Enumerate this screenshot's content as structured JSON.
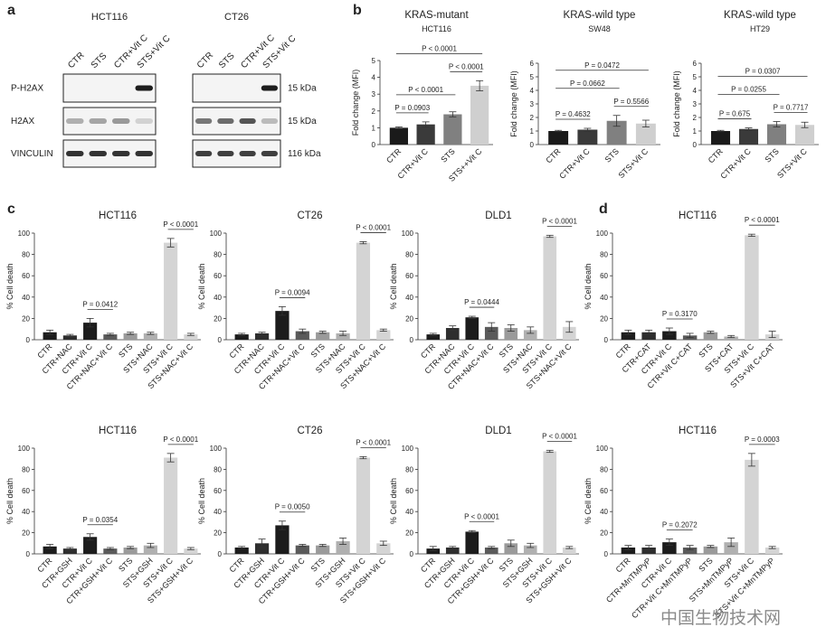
{
  "panel_labels": [
    "a",
    "b",
    "c",
    "d"
  ],
  "watermark": "中国生物技术网",
  "blot": {
    "cell_lines": [
      "HCT116",
      "CT26"
    ],
    "lanes": [
      "CTR",
      "STS",
      "CTR+Vit C",
      "STS+Vit C"
    ],
    "rows": [
      "P-H2AX",
      "H2AX",
      "VINCULIN"
    ],
    "sizes": [
      "15 kDa",
      "15 kDa",
      "116 kDa"
    ]
  },
  "chart_data": [
    {
      "type": "bar",
      "title": "KRAS-mutant",
      "subtitle": "HCT116",
      "ylabel": "Fold change (MFI)",
      "categories": [
        "CTR",
        "CTR+Vit C",
        "STS",
        "STS++Vit C"
      ],
      "values": [
        1,
        1.2,
        1.8,
        3.5
      ],
      "errors": [
        0.05,
        0.15,
        0.15,
        0.3
      ],
      "colors": [
        "#1a1a1a",
        "#3a3a3a",
        "#808080",
        "#cfcfcf"
      ],
      "ylim": [
        0,
        5
      ],
      "yticks": [
        0,
        1,
        2,
        3,
        4,
        5
      ],
      "comparisons": [
        {
          "label": "P = 0.0903",
          "between": [
            "CTR",
            "CTR+Vit C"
          ]
        },
        {
          "label": "P < 0.0001",
          "between": [
            "CTR",
            "STS"
          ]
        },
        {
          "label": "P < 0.0001",
          "between": [
            "STS",
            "STS++Vit C"
          ]
        },
        {
          "label": "P < 0.0001",
          "between": [
            "CTR",
            "STS++Vit C"
          ]
        }
      ]
    },
    {
      "type": "bar",
      "title": "KRAS-wild type",
      "subtitle": "SW48",
      "ylabel": "Fold change (MFI)",
      "categories": [
        "CTR",
        "CTR+Vit C",
        "STS",
        "STS+Vit C"
      ],
      "values": [
        1,
        1.1,
        1.75,
        1.55
      ],
      "errors": [
        0.05,
        0.1,
        0.4,
        0.25
      ],
      "colors": [
        "#1a1a1a",
        "#3a3a3a",
        "#808080",
        "#cfcfcf"
      ],
      "ylim": [
        0,
        6
      ],
      "yticks": [
        0,
        1,
        2,
        3,
        4,
        5,
        6
      ],
      "comparisons": [
        {
          "label": "P = 0.4632",
          "between": [
            "CTR",
            "CTR+Vit C"
          ]
        },
        {
          "label": "P = 0.5566",
          "between": [
            "STS",
            "STS+Vit C"
          ]
        },
        {
          "label": "P = 0.0662",
          "between": [
            "CTR",
            "STS"
          ]
        },
        {
          "label": "P = 0.0472",
          "between": [
            "CTR",
            "STS+Vit C"
          ]
        }
      ]
    },
    {
      "type": "bar",
      "title": "KRAS-wild type",
      "subtitle": "HT29",
      "ylabel": "Fold change (MFI)",
      "categories": [
        "CTR",
        "CTR+Vit C",
        "STS",
        "STS+Vit C"
      ],
      "values": [
        1,
        1.15,
        1.5,
        1.45
      ],
      "errors": [
        0.05,
        0.08,
        0.2,
        0.2
      ],
      "colors": [
        "#1a1a1a",
        "#3a3a3a",
        "#808080",
        "#cfcfcf"
      ],
      "ylim": [
        0,
        6
      ],
      "yticks": [
        0,
        1,
        2,
        3,
        4,
        5,
        6
      ],
      "comparisons": [
        {
          "label": "P = 0.675",
          "between": [
            "CTR",
            "CTR+Vit C"
          ]
        },
        {
          "label": "P = 0.7717",
          "between": [
            "STS",
            "STS+Vit C"
          ]
        },
        {
          "label": "P = 0.0255",
          "between": [
            "CTR",
            "STS"
          ]
        },
        {
          "label": "P = 0.0307",
          "between": [
            "CTR",
            "STS+Vit C"
          ]
        }
      ]
    },
    {
      "type": "bar",
      "title": "HCT116",
      "ylabel": "% Cell death",
      "categories": [
        "CTR",
        "CTR+NAC",
        "CTR+Vit C",
        "CTR+NAC+Vit C",
        "STS",
        "STS+NAC",
        "STS+Vit C",
        "STS+NAC+Vit C"
      ],
      "values": [
        7,
        4,
        16,
        5,
        6,
        6,
        91,
        5
      ],
      "errors": [
        2,
        1,
        4,
        1,
        1,
        1,
        4,
        1
      ],
      "colors": [
        "#1c1c1c",
        "#2e2e2e",
        "#1c1c1c",
        "#5a5a5a",
        "#9a9a9a",
        "#b0b0b0",
        "#d4d4d4",
        "#d4d4d4"
      ],
      "ylim": [
        0,
        100
      ],
      "yticks": [
        0,
        20,
        40,
        60,
        80,
        100
      ],
      "comparisons": [
        {
          "label": "P = 0.0412",
          "between": [
            "CTR+Vit C",
            "CTR+NAC+Vit C"
          ]
        },
        {
          "label": "P < 0.0001",
          "between": [
            "STS+Vit C",
            "STS+NAC+Vit C"
          ]
        }
      ]
    },
    {
      "type": "bar",
      "title": "CT26",
      "ylabel": "% Cell death",
      "categories": [
        "CTR",
        "CTR+NAC",
        "CTR+Vit C",
        "CTR+NAC+Vit C",
        "STS",
        "STS+NAC",
        "STS+Vit C",
        "STS+NAC+Vit C"
      ],
      "values": [
        5,
        6,
        27,
        8,
        7,
        6,
        91,
        9
      ],
      "errors": [
        1,
        1,
        4,
        2,
        1,
        2,
        1,
        1
      ],
      "colors": [
        "#1c1c1c",
        "#2e2e2e",
        "#1c1c1c",
        "#5a5a5a",
        "#9a9a9a",
        "#b0b0b0",
        "#d4d4d4",
        "#d4d4d4"
      ],
      "ylim": [
        0,
        100
      ],
      "yticks": [
        0,
        20,
        40,
        60,
        80,
        100
      ],
      "comparisons": [
        {
          "label": "P = 0.0094",
          "between": [
            "CTR+Vit C",
            "CTR+NAC+Vit C"
          ]
        },
        {
          "label": "P < 0.0001",
          "between": [
            "STS+Vit C",
            "STS+NAC+Vit C"
          ]
        }
      ]
    },
    {
      "type": "bar",
      "title": "DLD1",
      "ylabel": "% Cell death",
      "categories": [
        "CTR",
        "CTR+NAC",
        "CTR+Vit C",
        "CTR+NAC+Vit C",
        "STS",
        "STS+NAC",
        "STS+Vit C",
        "STS+NAC+Vit C"
      ],
      "values": [
        5,
        11,
        21,
        12,
        11,
        9,
        97,
        12
      ],
      "errors": [
        1,
        2,
        1,
        4,
        3,
        3,
        1,
        5
      ],
      "colors": [
        "#1c1c1c",
        "#2e2e2e",
        "#1c1c1c",
        "#5a5a5a",
        "#9a9a9a",
        "#b0b0b0",
        "#d4d4d4",
        "#d4d4d4"
      ],
      "ylim": [
        0,
        100
      ],
      "yticks": [
        0,
        20,
        40,
        60,
        80,
        100
      ],
      "comparisons": [
        {
          "label": "P = 0.0444",
          "between": [
            "CTR+Vit C",
            "CTR+NAC+Vit C"
          ]
        },
        {
          "label": "P < 0.0001",
          "between": [
            "STS+Vit C",
            "STS+NAC+Vit C"
          ]
        }
      ]
    },
    {
      "type": "bar",
      "title": "HCT116",
      "ylabel": "% Cell death",
      "categories": [
        "CTR",
        "CTR+GSH",
        "CTR+Vit C",
        "CTR+GSH+Vit C",
        "STS",
        "STS+GSH",
        "STS+Vit C",
        "STS+GSH+Vit C"
      ],
      "values": [
        7,
        5,
        16,
        5,
        6,
        8,
        91,
        5
      ],
      "errors": [
        2,
        1,
        3,
        1,
        1,
        2,
        4,
        1
      ],
      "colors": [
        "#1c1c1c",
        "#2e2e2e",
        "#1c1c1c",
        "#5a5a5a",
        "#9a9a9a",
        "#b0b0b0",
        "#d4d4d4",
        "#d4d4d4"
      ],
      "ylim": [
        0,
        100
      ],
      "yticks": [
        0,
        20,
        40,
        60,
        80,
        100
      ],
      "comparisons": [
        {
          "label": "P = 0.0354",
          "between": [
            "CTR+Vit C",
            "CTR+GSH+Vit C"
          ]
        },
        {
          "label": "P < 0.0001",
          "between": [
            "STS+Vit C",
            "STS+GSH+Vit C"
          ]
        }
      ]
    },
    {
      "type": "bar",
      "title": "CT26",
      "ylabel": "% Cell death",
      "categories": [
        "CTR",
        "CTR+GSH",
        "CTR+Vit C",
        "CTR+GSH+Vit C",
        "STS",
        "STS+GSH",
        "STS+Vit C",
        "STS+GSH+Vit C"
      ],
      "values": [
        6,
        10,
        27,
        8,
        8,
        12,
        91,
        10
      ],
      "errors": [
        1,
        4,
        4,
        1,
        1,
        3,
        1,
        2
      ],
      "colors": [
        "#1c1c1c",
        "#2e2e2e",
        "#1c1c1c",
        "#5a5a5a",
        "#9a9a9a",
        "#b0b0b0",
        "#d4d4d4",
        "#d4d4d4"
      ],
      "ylim": [
        0,
        100
      ],
      "yticks": [
        0,
        20,
        40,
        60,
        80,
        100
      ],
      "comparisons": [
        {
          "label": "P = 0.0050",
          "between": [
            "CTR+Vit C",
            "CTR+GSH+Vit C"
          ]
        },
        {
          "label": "P < 0.0001",
          "between": [
            "STS+Vit C",
            "STS+GSH+Vit C"
          ]
        }
      ]
    },
    {
      "type": "bar",
      "title": "DLD1",
      "ylabel": "% Cell death",
      "categories": [
        "CTR",
        "CTR+GSH",
        "CTR+Vit C",
        "CTR+GSH+Vit C",
        "STS",
        "STS+GSH",
        "STS+Vit C",
        "STS+GSH+Vit C"
      ],
      "values": [
        5,
        6,
        21,
        6,
        10,
        8,
        97,
        6
      ],
      "errors": [
        2,
        1,
        1,
        1,
        3,
        2,
        1,
        1
      ],
      "colors": [
        "#1c1c1c",
        "#2e2e2e",
        "#1c1c1c",
        "#5a5a5a",
        "#9a9a9a",
        "#b0b0b0",
        "#d4d4d4",
        "#d4d4d4"
      ],
      "ylim": [
        0,
        100
      ],
      "yticks": [
        0,
        20,
        40,
        60,
        80,
        100
      ],
      "comparisons": [
        {
          "label": "P < 0.0001",
          "between": [
            "CTR+Vit C",
            "CTR+GSH+Vit C"
          ]
        },
        {
          "label": "P < 0.0001",
          "between": [
            "STS+Vit C",
            "STS+GSH+Vit C"
          ]
        }
      ]
    },
    {
      "type": "bar",
      "title": "HCT116",
      "ylabel": "% Cell death",
      "categories": [
        "CTR",
        "CTR+CAT",
        "CTR+Vit C",
        "CTR+Vit C+CAT",
        "STS",
        "STS+CAT",
        "STS+Vit C",
        "STS+Vit C+CAT"
      ],
      "values": [
        7,
        7,
        8,
        4,
        7,
        3,
        98,
        5
      ],
      "errors": [
        2,
        2,
        3,
        2,
        1,
        1,
        1,
        3
      ],
      "colors": [
        "#1c1c1c",
        "#2e2e2e",
        "#1c1c1c",
        "#5a5a5a",
        "#9a9a9a",
        "#b0b0b0",
        "#d4d4d4",
        "#d4d4d4"
      ],
      "ylim": [
        0,
        100
      ],
      "yticks": [
        0,
        20,
        40,
        60,
        80,
        100
      ],
      "comparisons": [
        {
          "label": "P = 0.3170",
          "between": [
            "CTR+Vit C",
            "CTR+Vit C+CAT"
          ]
        },
        {
          "label": "P < 0.0001",
          "between": [
            "STS+Vit C",
            "STS+Vit C+CAT"
          ]
        }
      ]
    },
    {
      "type": "bar",
      "title": "HCT116",
      "ylabel": "% Cell death",
      "categories": [
        "CTR",
        "CTR+MnTMPyP",
        "CTR+Vit C",
        "CTR+Vit C+MnTMPyP",
        "STS",
        "STS+MnTMPyP",
        "STS+Vit C",
        "STS+Vit C+MnTMPyP"
      ],
      "values": [
        6,
        6,
        11,
        6,
        7,
        11,
        89,
        6
      ],
      "errors": [
        2,
        2,
        3,
        2,
        1,
        4,
        6,
        1
      ],
      "colors": [
        "#1c1c1c",
        "#2e2e2e",
        "#1c1c1c",
        "#5a5a5a",
        "#9a9a9a",
        "#b0b0b0",
        "#d4d4d4",
        "#d4d4d4"
      ],
      "ylim": [
        0,
        100
      ],
      "yticks": [
        0,
        20,
        40,
        60,
        80,
        100
      ],
      "comparisons": [
        {
          "label": "P = 0.2072",
          "between": [
            "CTR+Vit C",
            "CTR+Vit C+MnTMPyP"
          ]
        },
        {
          "label": "P = 0.0003",
          "between": [
            "STS+Vit C",
            "STS+Vit C+MnTMPyP"
          ]
        }
      ]
    }
  ]
}
